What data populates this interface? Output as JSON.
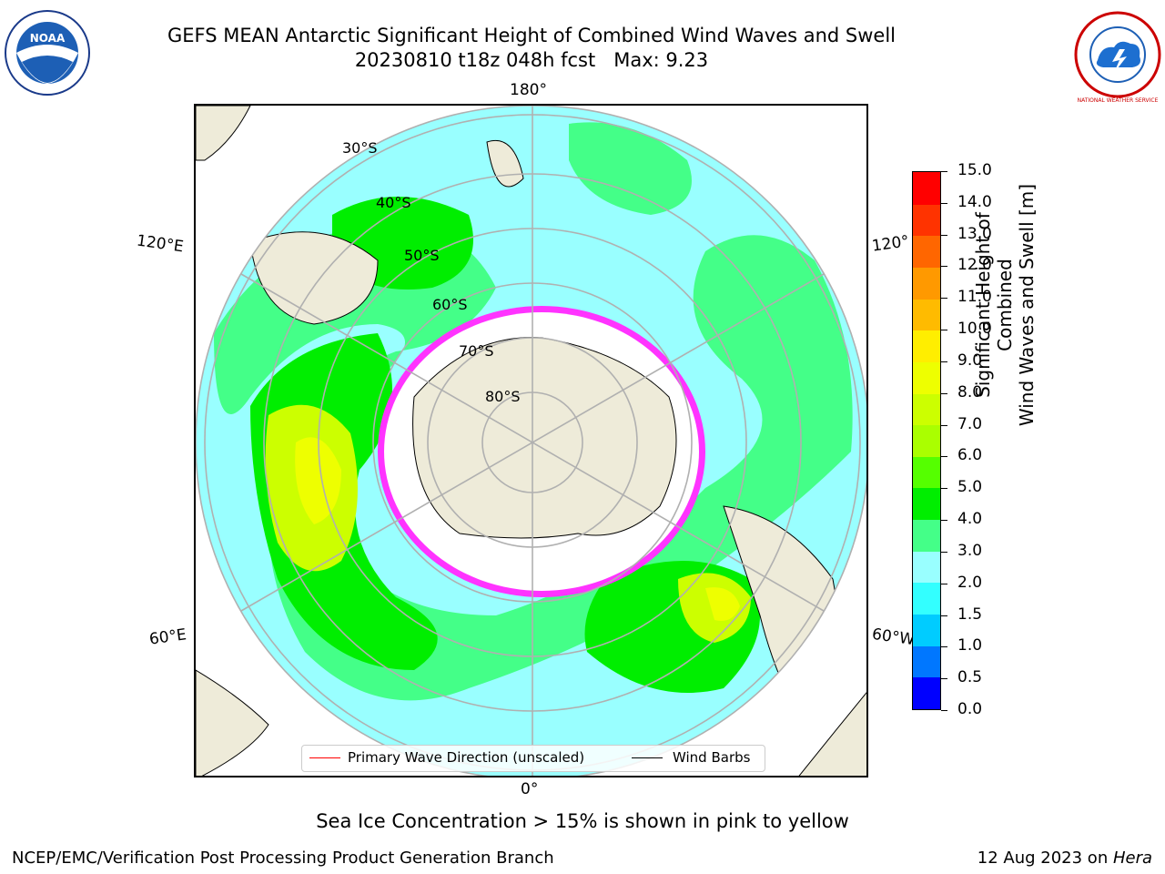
{
  "title": {
    "line1": "GEFS MEAN Antarctic Significant Height of Combined Wind Waves and Swell",
    "line2": "20230810 t18z 048h fcst   Max: 9.23"
  },
  "logos": {
    "noaa_text": "NOAA",
    "nws_text": "NATIONAL WEATHER SERVICE"
  },
  "map": {
    "projection": "south-polar-stereographic",
    "longitude_labels": {
      "top": "180°",
      "bottom": "0°",
      "upper_left": "120°E",
      "upper_right": "120°",
      "lower_left": "60°E",
      "lower_right": "60°W"
    },
    "latitude_labels": [
      "30°S",
      "40°S",
      "50°S",
      "60°S",
      "70°S",
      "80°S"
    ],
    "colors": {
      "ocean_low": "#99ffff",
      "land": "#eeebd9",
      "grid": "#b0b0b0",
      "wave_arrow": "#ff0000",
      "wind_barb": "#000000",
      "ice_pink": "#ff33ff"
    }
  },
  "legend": {
    "primary_wave": "Primary Wave Direction (unscaled)",
    "wind_barbs": "Wind Barbs"
  },
  "colorbar": {
    "title_line1": "Significant Height of Combined",
    "title_line2": "Wind Waves and Swell [m]",
    "ticks": [
      "0.0",
      "0.5",
      "1.0",
      "1.5",
      "2.0",
      "3.0",
      "4.0",
      "5.0",
      "6.0",
      "7.0",
      "8.0",
      "9.0",
      "10.0",
      "11.0",
      "12.0",
      "13.0",
      "14.0",
      "15.0"
    ],
    "colors": [
      "#0000ff",
      "#0077ff",
      "#00ccff",
      "#33ffff",
      "#99ffff",
      "#44ff88",
      "#00ee00",
      "#55ff00",
      "#aaff00",
      "#ccff00",
      "#eeff00",
      "#ffee00",
      "#ffbb00",
      "#ff9900",
      "#ff6600",
      "#ff3300",
      "#ff0000"
    ]
  },
  "caption": "Sea Ice Concentration > 15% is shown in pink to yellow",
  "footer": {
    "left": "NCEP/EMC/Verification Post Processing Product Generation Branch",
    "date": "12 Aug 2023 on ",
    "host": "Hera"
  }
}
